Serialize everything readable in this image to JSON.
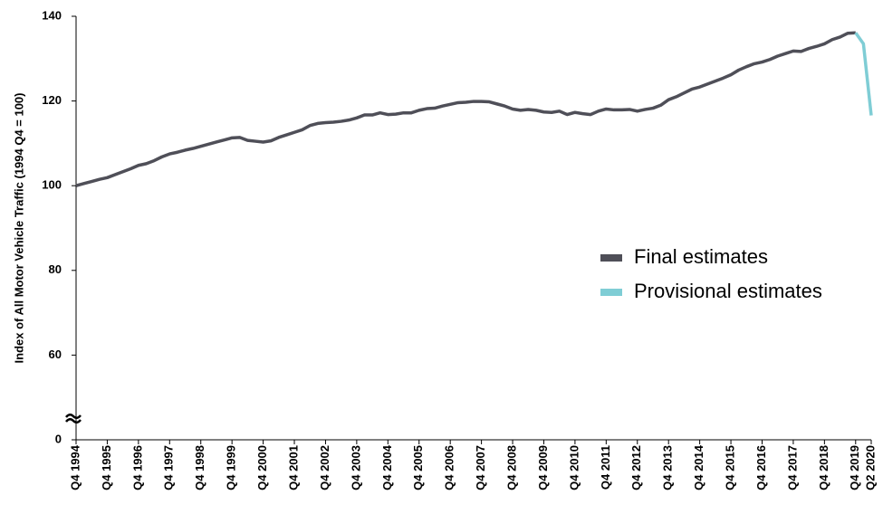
{
  "chart_data": {
    "type": "line",
    "y_label": "Index of All Motor Vehicle Traffic (1994 Q4 = 100)",
    "categories": [
      "Q4 1994",
      null,
      null,
      null,
      "Q4 1995",
      null,
      null,
      null,
      "Q4 1996",
      null,
      null,
      null,
      "Q4 1997",
      null,
      null,
      null,
      "Q4 1998",
      null,
      null,
      null,
      "Q4 1999",
      null,
      null,
      null,
      "Q4 2000",
      null,
      null,
      null,
      "Q4 2001",
      null,
      null,
      null,
      "Q4 2002",
      null,
      null,
      null,
      "Q4 2003",
      null,
      null,
      null,
      "Q4 2004",
      null,
      null,
      null,
      "Q4 2005",
      null,
      null,
      null,
      "Q4 2006",
      null,
      null,
      null,
      "Q4 2007",
      null,
      null,
      null,
      "Q4 2008",
      null,
      null,
      null,
      "Q4 2009",
      null,
      null,
      null,
      "Q4 2010",
      null,
      null,
      null,
      "Q4 2011",
      null,
      null,
      null,
      "Q4 2012",
      null,
      null,
      null,
      "Q4 2013",
      null,
      null,
      null,
      "Q4 2014",
      null,
      null,
      null,
      "Q4 2015",
      null,
      null,
      null,
      "Q4 2016",
      null,
      null,
      null,
      "Q4 2017",
      null,
      null,
      null,
      "Q4 2018",
      null,
      null,
      null,
      "Q4 2019",
      null,
      "Q2 2020"
    ],
    "series": [
      {
        "name": "Final estimates",
        "color": "#4f4f58",
        "values": [
          100,
          100.5,
          101,
          101.5,
          101.9,
          102.6,
          103.3,
          104.0,
          104.8,
          105.2,
          105.9,
          106.8,
          107.5,
          107.9,
          108.4,
          108.8,
          109.3,
          109.8,
          110.3,
          110.8,
          111.3,
          111.4,
          110.7,
          110.5,
          110.3,
          110.6,
          111.4,
          112.0,
          112.6,
          113.2,
          114.2,
          114.7,
          114.9,
          115.0,
          115.2,
          115.5,
          116.0,
          116.7,
          116.7,
          117.2,
          116.8,
          116.9,
          117.2,
          117.2,
          117.8,
          118.2,
          118.3,
          118.8,
          119.2,
          119.6,
          119.7,
          119.9,
          119.9,
          119.8,
          119.3,
          118.8,
          118.1,
          117.8,
          118.0,
          117.8,
          117.4,
          117.3,
          117.6,
          116.8,
          117.3,
          117.0,
          116.8,
          117.6,
          118.1,
          117.9,
          117.9,
          118.0,
          117.6,
          118.0,
          118.3,
          119.0,
          120.3,
          121.0,
          121.9,
          122.8,
          123.3,
          124.0,
          124.7,
          125.4,
          126.2,
          127.3,
          128.1,
          128.8,
          129.2,
          129.8,
          130.6,
          131.2,
          131.8,
          131.7,
          132.4,
          132.9,
          133.5,
          134.5,
          135.1,
          136.0,
          136.1,
          null,
          null
        ]
      },
      {
        "name": "Provisional estimates",
        "color": "#7fcdd5",
        "values": [
          null,
          null,
          null,
          null,
          null,
          null,
          null,
          null,
          null,
          null,
          null,
          null,
          null,
          null,
          null,
          null,
          null,
          null,
          null,
          null,
          null,
          null,
          null,
          null,
          null,
          null,
          null,
          null,
          null,
          null,
          null,
          null,
          null,
          null,
          null,
          null,
          null,
          null,
          null,
          null,
          null,
          null,
          null,
          null,
          null,
          null,
          null,
          null,
          null,
          null,
          null,
          null,
          null,
          null,
          null,
          null,
          null,
          null,
          null,
          null,
          null,
          null,
          null,
          null,
          null,
          null,
          null,
          null,
          null,
          null,
          null,
          null,
          null,
          null,
          null,
          null,
          null,
          null,
          null,
          null,
          null,
          null,
          null,
          null,
          null,
          null,
          null,
          null,
          null,
          null,
          null,
          null,
          null,
          null,
          null,
          null,
          null,
          null,
          null,
          null,
          136.1,
          133.5,
          116.6
        ]
      }
    ],
    "ylim": [
      0,
      140
    ],
    "yticks": [
      0,
      60,
      80,
      100,
      120,
      140
    ],
    "axis_break": true,
    "legend": "right"
  }
}
